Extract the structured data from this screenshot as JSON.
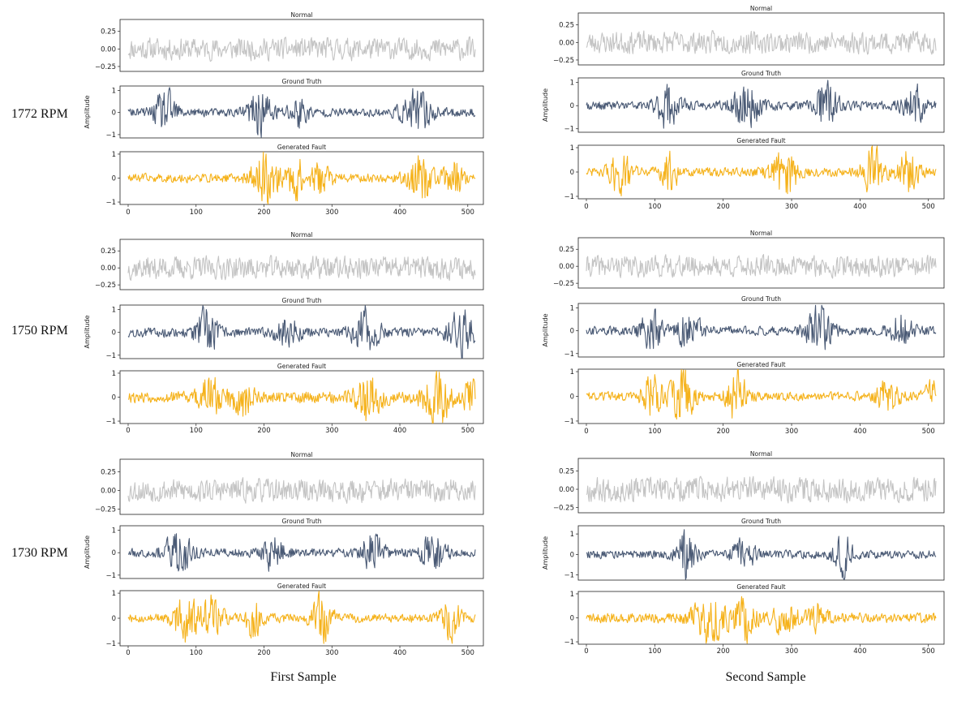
{
  "figure": {
    "columns": [
      "First Sample",
      "Second Sample"
    ],
    "rows": [
      "1772 RPM",
      "1750 RPM",
      "1730 RPM"
    ]
  },
  "colors": {
    "normal": "#c4c4c4",
    "ground_truth": "#4a5a75",
    "generated_fault": "#f5b21b"
  },
  "chart_data": [
    {
      "type": "line",
      "row": "1772 RPM",
      "column": "First Sample",
      "seed": 11,
      "panels": [
        {
          "title": "Normal",
          "series": "normal",
          "ylim": [
            -0.32,
            0.42
          ],
          "yticks": [
            -0.25,
            0.0,
            0.25
          ],
          "ytick_labels": [
            "−0.25",
            "0.00",
            "0.25"
          ],
          "amp": 0.13,
          "bursts": [],
          "ylabel": ""
        },
        {
          "title": "Ground Truth",
          "series": "ground_truth",
          "ylim": [
            -1.15,
            1.2
          ],
          "yticks": [
            -1,
            0,
            1
          ],
          "ytick_labels": [
            "−1",
            "0",
            "1"
          ],
          "amp": 0.16,
          "bursts": [
            {
              "c": 55,
              "w": 16,
              "a": 0.75
            },
            {
              "c": 195,
              "w": 18,
              "a": 0.85
            },
            {
              "c": 250,
              "w": 14,
              "a": 0.6
            },
            {
              "c": 425,
              "w": 22,
              "a": 0.75
            }
          ],
          "ylabel": "Amplitude"
        },
        {
          "title": "Generated Fault",
          "series": "generated_fault",
          "ylim": [
            -1.1,
            1.1
          ],
          "yticks": [
            -1,
            0,
            1
          ],
          "ytick_labels": [
            "−1",
            "0",
            "1"
          ],
          "amp": 0.15,
          "bursts": [
            {
              "c": 200,
              "w": 18,
              "a": 0.85
            },
            {
              "c": 245,
              "w": 16,
              "a": 0.7
            },
            {
              "c": 285,
              "w": 14,
              "a": 0.55
            },
            {
              "c": 430,
              "w": 18,
              "a": 0.8
            },
            {
              "c": 480,
              "w": 14,
              "a": 0.55
            }
          ],
          "ylabel": "",
          "xticks": [
            0,
            100,
            200,
            300,
            400,
            500
          ]
        }
      ]
    },
    {
      "type": "line",
      "row": "1772 RPM",
      "column": "Second Sample",
      "seed": 23,
      "panels": [
        {
          "title": "Normal",
          "series": "normal",
          "ylim": [
            -0.32,
            0.42
          ],
          "yticks": [
            -0.25,
            0.0,
            0.25
          ],
          "ytick_labels": [
            "−0.25",
            "0.00",
            "0.25"
          ],
          "amp": 0.13,
          "bursts": [],
          "ylabel": ""
        },
        {
          "title": "Ground Truth",
          "series": "ground_truth",
          "ylim": [
            -1.15,
            1.2
          ],
          "yticks": [
            -1,
            0,
            1
          ],
          "ytick_labels": [
            "−1",
            "0",
            "1"
          ],
          "amp": 0.16,
          "bursts": [
            {
              "c": 120,
              "w": 16,
              "a": 0.8
            },
            {
              "c": 235,
              "w": 18,
              "a": 0.8
            },
            {
              "c": 350,
              "w": 16,
              "a": 0.85
            },
            {
              "c": 480,
              "w": 16,
              "a": 0.65
            }
          ],
          "ylabel": "Amplitude"
        },
        {
          "title": "Generated Fault",
          "series": "generated_fault",
          "ylim": [
            -1.1,
            1.1
          ],
          "yticks": [
            -1,
            0,
            1
          ],
          "ytick_labels": [
            "−1",
            "0",
            "1"
          ],
          "amp": 0.15,
          "bursts": [
            {
              "c": 50,
              "w": 16,
              "a": 0.75
            },
            {
              "c": 120,
              "w": 14,
              "a": 0.6
            },
            {
              "c": 290,
              "w": 18,
              "a": 0.85
            },
            {
              "c": 420,
              "w": 16,
              "a": 0.75
            },
            {
              "c": 470,
              "w": 14,
              "a": 0.7
            }
          ],
          "ylabel": "",
          "xticks": [
            0,
            100,
            200,
            300,
            400,
            500
          ]
        }
      ]
    },
    {
      "type": "line",
      "row": "1750 RPM",
      "column": "First Sample",
      "seed": 37,
      "panels": [
        {
          "title": "Normal",
          "series": "normal",
          "ylim": [
            -0.32,
            0.42
          ],
          "yticks": [
            -0.25,
            0.0,
            0.25
          ],
          "ytick_labels": [
            "−0.25",
            "0.00",
            "0.25"
          ],
          "amp": 0.14,
          "bursts": [],
          "ylabel": ""
        },
        {
          "title": "Ground Truth",
          "series": "ground_truth",
          "ylim": [
            -1.15,
            1.2
          ],
          "yticks": [
            -1,
            0,
            1
          ],
          "ytick_labels": [
            "−1",
            "0",
            "1"
          ],
          "amp": 0.17,
          "bursts": [
            {
              "c": 115,
              "w": 16,
              "a": 0.8
            },
            {
              "c": 235,
              "w": 16,
              "a": 0.6
            },
            {
              "c": 350,
              "w": 18,
              "a": 0.85
            },
            {
              "c": 490,
              "w": 18,
              "a": 0.8
            }
          ],
          "ylabel": "Amplitude"
        },
        {
          "title": "Generated Fault",
          "series": "generated_fault",
          "ylim": [
            -1.1,
            1.1
          ],
          "yticks": [
            -1,
            0,
            1
          ],
          "ytick_labels": [
            "−1",
            "0",
            "1"
          ],
          "amp": 0.2,
          "bursts": [
            {
              "c": 120,
              "w": 16,
              "a": 0.6
            },
            {
              "c": 165,
              "w": 16,
              "a": 0.7
            },
            {
              "c": 355,
              "w": 18,
              "a": 0.8
            },
            {
              "c": 455,
              "w": 22,
              "a": 0.8
            },
            {
              "c": 505,
              "w": 10,
              "a": 0.7
            }
          ],
          "ylabel": "",
          "xticks": [
            0,
            100,
            200,
            300,
            400,
            500
          ]
        }
      ]
    },
    {
      "type": "line",
      "row": "1750 RPM",
      "column": "Second Sample",
      "seed": 41,
      "panels": [
        {
          "title": "Normal",
          "series": "normal",
          "ylim": [
            -0.32,
            0.42
          ],
          "yticks": [
            -0.25,
            0.0,
            0.25
          ],
          "ytick_labels": [
            "−0.25",
            "0.00",
            "0.25"
          ],
          "amp": 0.13,
          "bursts": [],
          "ylabel": ""
        },
        {
          "title": "Ground Truth",
          "series": "ground_truth",
          "ylim": [
            -1.15,
            1.2
          ],
          "yticks": [
            -1,
            0,
            1
          ],
          "ytick_labels": [
            "−1",
            "0",
            "1"
          ],
          "amp": 0.16,
          "bursts": [
            {
              "c": 95,
              "w": 16,
              "a": 0.65
            },
            {
              "c": 150,
              "w": 16,
              "a": 0.7
            },
            {
              "c": 340,
              "w": 18,
              "a": 0.8
            },
            {
              "c": 460,
              "w": 16,
              "a": 0.55
            }
          ],
          "ylabel": "Amplitude"
        },
        {
          "title": "Generated Fault",
          "series": "generated_fault",
          "ylim": [
            -1.1,
            1.1
          ],
          "yticks": [
            -1,
            0,
            1
          ],
          "ytick_labels": [
            "−1",
            "0",
            "1"
          ],
          "amp": 0.15,
          "bursts": [
            {
              "c": 95,
              "w": 14,
              "a": 0.8
            },
            {
              "c": 140,
              "w": 18,
              "a": 0.85
            },
            {
              "c": 220,
              "w": 14,
              "a": 0.85
            },
            {
              "c": 440,
              "w": 16,
              "a": 0.5
            },
            {
              "c": 505,
              "w": 10,
              "a": 0.5
            }
          ],
          "ylabel": "",
          "xticks": [
            0,
            100,
            200,
            300,
            400,
            500
          ]
        }
      ]
    },
    {
      "type": "line",
      "row": "1730 RPM",
      "column": "First Sample",
      "seed": 53,
      "panels": [
        {
          "title": "Normal",
          "series": "normal",
          "ylim": [
            -0.32,
            0.42
          ],
          "yticks": [
            -0.25,
            0.0,
            0.25
          ],
          "ytick_labels": [
            "−0.25",
            "0.00",
            "0.25"
          ],
          "amp": 0.13,
          "bursts": [],
          "ylabel": ""
        },
        {
          "title": "Ground Truth",
          "series": "ground_truth",
          "ylim": [
            -1.15,
            1.2
          ],
          "yticks": [
            -1,
            0,
            1
          ],
          "ytick_labels": [
            "−1",
            "0",
            "1"
          ],
          "amp": 0.16,
          "bursts": [
            {
              "c": 75,
              "w": 20,
              "a": 0.75
            },
            {
              "c": 215,
              "w": 16,
              "a": 0.65
            },
            {
              "c": 360,
              "w": 14,
              "a": 0.85
            },
            {
              "c": 450,
              "w": 18,
              "a": 0.75
            }
          ],
          "ylabel": "Amplitude"
        },
        {
          "title": "Generated Fault",
          "series": "generated_fault",
          "ylim": [
            -1.1,
            1.1
          ],
          "yticks": [
            -1,
            0,
            1
          ],
          "ytick_labels": [
            "−1",
            "0",
            "1"
          ],
          "amp": 0.15,
          "bursts": [
            {
              "c": 85,
              "w": 18,
              "a": 0.85
            },
            {
              "c": 125,
              "w": 14,
              "a": 0.7
            },
            {
              "c": 185,
              "w": 12,
              "a": 0.6
            },
            {
              "c": 285,
              "w": 14,
              "a": 0.75
            },
            {
              "c": 475,
              "w": 14,
              "a": 0.65
            }
          ],
          "ylabel": "",
          "xticks": [
            0,
            100,
            200,
            300,
            400,
            500
          ]
        }
      ]
    },
    {
      "type": "line",
      "row": "1730 RPM",
      "column": "Second Sample",
      "seed": 67,
      "panels": [
        {
          "title": "Normal",
          "series": "normal",
          "ylim": [
            -0.32,
            0.42
          ],
          "yticks": [
            -0.25,
            0.0,
            0.25
          ],
          "ytick_labels": [
            "−0.25",
            "0.00",
            "0.25"
          ],
          "amp": 0.14,
          "bursts": [],
          "ylabel": ""
        },
        {
          "title": "Ground Truth",
          "series": "ground_truth",
          "ylim": [
            -1.25,
            1.4
          ],
          "yticks": [
            -1,
            0,
            1
          ],
          "ytick_labels": [
            "−1",
            "0",
            "1"
          ],
          "amp": 0.16,
          "bursts": [
            {
              "c": 145,
              "w": 14,
              "a": 0.9
            },
            {
              "c": 230,
              "w": 16,
              "a": 0.6
            },
            {
              "c": 375,
              "w": 14,
              "a": 0.75
            }
          ],
          "ylabel": "Amplitude"
        },
        {
          "title": "Generated Fault",
          "series": "generated_fault",
          "ylim": [
            -1.1,
            1.1
          ],
          "yticks": [
            -1,
            0,
            1
          ],
          "ytick_labels": [
            "−1",
            "0",
            "1"
          ],
          "amp": 0.17,
          "bursts": [
            {
              "c": 180,
              "w": 24,
              "a": 0.75
            },
            {
              "c": 230,
              "w": 16,
              "a": 0.7
            },
            {
              "c": 290,
              "w": 18,
              "a": 0.5
            },
            {
              "c": 340,
              "w": 14,
              "a": 0.45
            }
          ],
          "ylabel": "",
          "xticks": [
            0,
            100,
            200,
            300,
            400,
            500
          ]
        }
      ]
    }
  ]
}
